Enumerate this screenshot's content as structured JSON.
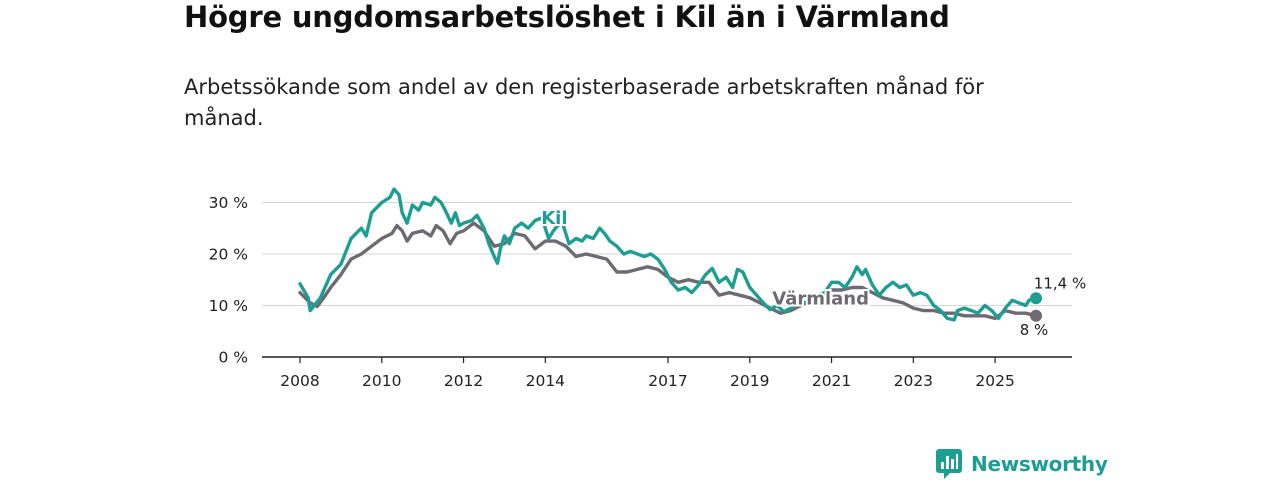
{
  "chart_data": {
    "type": "line",
    "title": "Högre ungdomsarbetslöshet i Kil än i Värmland",
    "subtitle": "Arbetssökande som andel av den registerbaserade arbetskraften månad för månad.",
    "xlabel": "",
    "ylabel": "",
    "ylim": [
      0,
      33
    ],
    "xlim": [
      2008.0,
      2026.0
    ],
    "y_ticks": [
      0,
      10,
      20,
      30
    ],
    "y_tick_labels": [
      "0 %",
      "10 %",
      "20 %",
      "30 %"
    ],
    "x_ticks": [
      2008,
      2010,
      2012,
      2014,
      2017,
      2019,
      2021,
      2023,
      2025
    ],
    "x_tick_labels": [
      "2008",
      "2010",
      "2012",
      "2014",
      "2017",
      "2019",
      "2021",
      "2023",
      "2025"
    ],
    "grid": true,
    "series": [
      {
        "name": "Kil",
        "label": "Kil",
        "color": "#1d9e92",
        "end_label": "11,4 %",
        "points": [
          [
            2008.0,
            14.2
          ],
          [
            2008.2,
            11.5
          ],
          [
            2008.25,
            9.0
          ],
          [
            2008.5,
            11.5
          ],
          [
            2008.75,
            16.0
          ],
          [
            2009.0,
            18.0
          ],
          [
            2009.25,
            23.0
          ],
          [
            2009.5,
            25.0
          ],
          [
            2009.62,
            23.5
          ],
          [
            2009.75,
            28.0
          ],
          [
            2010.0,
            30.0
          ],
          [
            2010.2,
            31.0
          ],
          [
            2010.3,
            32.6
          ],
          [
            2010.42,
            31.5
          ],
          [
            2010.5,
            28.0
          ],
          [
            2010.62,
            26.0
          ],
          [
            2010.75,
            29.5
          ],
          [
            2010.9,
            28.5
          ],
          [
            2011.0,
            30.0
          ],
          [
            2011.2,
            29.5
          ],
          [
            2011.3,
            31.0
          ],
          [
            2011.45,
            30.0
          ],
          [
            2011.55,
            28.5
          ],
          [
            2011.7,
            26.0
          ],
          [
            2011.8,
            28.0
          ],
          [
            2011.9,
            25.5
          ],
          [
            2012.0,
            26.0
          ],
          [
            2012.2,
            26.5
          ],
          [
            2012.33,
            27.5
          ],
          [
            2012.5,
            25.0
          ],
          [
            2012.62,
            22.0
          ],
          [
            2012.75,
            19.5
          ],
          [
            2012.83,
            18.2
          ],
          [
            2012.9,
            21.0
          ],
          [
            2013.0,
            23.5
          ],
          [
            2013.12,
            22.0
          ],
          [
            2013.25,
            25.0
          ],
          [
            2013.42,
            26.0
          ],
          [
            2013.58,
            25.0
          ],
          [
            2013.75,
            26.5
          ],
          [
            2013.92,
            27.0
          ],
          [
            2014.0,
            25.0
          ],
          [
            2014.08,
            23.0
          ],
          [
            2014.2,
            24.5
          ],
          [
            2014.3,
            25.5
          ],
          [
            2014.42,
            26.0
          ],
          [
            2014.58,
            22.0
          ],
          [
            2014.75,
            23.0
          ],
          [
            2014.9,
            22.5
          ],
          [
            2015.0,
            23.5
          ],
          [
            2015.17,
            23.0
          ],
          [
            2015.33,
            25.0
          ],
          [
            2015.45,
            24.0
          ],
          [
            2015.58,
            22.5
          ],
          [
            2015.75,
            21.5
          ],
          [
            2015.92,
            20.0
          ],
          [
            2016.08,
            20.5
          ],
          [
            2016.25,
            20.0
          ],
          [
            2016.42,
            19.5
          ],
          [
            2016.58,
            20.0
          ],
          [
            2016.75,
            19.0
          ],
          [
            2016.92,
            17.0
          ],
          [
            2017.08,
            14.5
          ],
          [
            2017.25,
            13.0
          ],
          [
            2017.42,
            13.5
          ],
          [
            2017.58,
            12.5
          ],
          [
            2017.75,
            14.0
          ],
          [
            2017.92,
            16.0
          ],
          [
            2018.08,
            17.2
          ],
          [
            2018.25,
            14.5
          ],
          [
            2018.42,
            15.5
          ],
          [
            2018.58,
            13.5
          ],
          [
            2018.7,
            17.0
          ],
          [
            2018.83,
            16.5
          ],
          [
            2019.0,
            13.5
          ],
          [
            2019.17,
            12.0
          ],
          [
            2019.33,
            10.5
          ],
          [
            2019.5,
            9.2
          ],
          [
            2019.67,
            10.0
          ],
          [
            2019.83,
            8.8
          ],
          [
            2020.0,
            9.5
          ],
          [
            2020.17,
            10.5
          ],
          [
            2020.33,
            10.5
          ],
          [
            2020.5,
            11.0
          ],
          [
            2020.67,
            12.0
          ],
          [
            2020.83,
            12.5
          ],
          [
            2021.0,
            14.5
          ],
          [
            2021.17,
            14.5
          ],
          [
            2021.33,
            13.5
          ],
          [
            2021.5,
            15.5
          ],
          [
            2021.62,
            17.5
          ],
          [
            2021.75,
            16.0
          ],
          [
            2021.83,
            17.0
          ],
          [
            2022.0,
            14.0
          ],
          [
            2022.17,
            12.0
          ],
          [
            2022.33,
            13.5
          ],
          [
            2022.5,
            14.5
          ],
          [
            2022.67,
            13.5
          ],
          [
            2022.83,
            14.0
          ],
          [
            2023.0,
            12.0
          ],
          [
            2023.17,
            12.5
          ],
          [
            2023.33,
            12.0
          ],
          [
            2023.5,
            10.0
          ],
          [
            2023.67,
            9.0
          ],
          [
            2023.83,
            7.5
          ],
          [
            2024.0,
            7.2
          ],
          [
            2024.08,
            9.0
          ],
          [
            2024.25,
            9.5
          ],
          [
            2024.42,
            9.0
          ],
          [
            2024.58,
            8.5
          ],
          [
            2024.75,
            10.0
          ],
          [
            2024.92,
            9.0
          ],
          [
            2025.08,
            7.5
          ],
          [
            2025.25,
            9.5
          ],
          [
            2025.42,
            11.0
          ],
          [
            2025.58,
            10.5
          ],
          [
            2025.75,
            10.0
          ],
          [
            2025.83,
            11.0
          ],
          [
            2026.0,
            11.4
          ]
        ]
      },
      {
        "name": "Värmland",
        "label": "Värmland",
        "color": "#6e6a72",
        "end_label": "8 %",
        "points": [
          [
            2008.0,
            12.5
          ],
          [
            2008.25,
            10.5
          ],
          [
            2008.42,
            9.8
          ],
          [
            2008.58,
            11.5
          ],
          [
            2008.75,
            13.5
          ],
          [
            2009.0,
            16.0
          ],
          [
            2009.25,
            19.0
          ],
          [
            2009.5,
            20.0
          ],
          [
            2009.75,
            21.5
          ],
          [
            2010.0,
            23.0
          ],
          [
            2010.25,
            24.0
          ],
          [
            2010.37,
            25.5
          ],
          [
            2010.5,
            24.5
          ],
          [
            2010.62,
            22.5
          ],
          [
            2010.75,
            24.0
          ],
          [
            2011.0,
            24.5
          ],
          [
            2011.2,
            23.5
          ],
          [
            2011.33,
            25.5
          ],
          [
            2011.5,
            24.5
          ],
          [
            2011.67,
            22.0
          ],
          [
            2011.83,
            24.0
          ],
          [
            2012.0,
            24.5
          ],
          [
            2012.25,
            26.0
          ],
          [
            2012.5,
            24.5
          ],
          [
            2012.75,
            21.5
          ],
          [
            2013.0,
            22.0
          ],
          [
            2013.25,
            24.0
          ],
          [
            2013.5,
            23.5
          ],
          [
            2013.75,
            21.0
          ],
          [
            2014.0,
            22.5
          ],
          [
            2014.25,
            22.5
          ],
          [
            2014.5,
            21.5
          ],
          [
            2014.75,
            19.5
          ],
          [
            2015.0,
            20.0
          ],
          [
            2015.25,
            19.5
          ],
          [
            2015.5,
            19.0
          ],
          [
            2015.75,
            16.5
          ],
          [
            2016.0,
            16.5
          ],
          [
            2016.25,
            17.0
          ],
          [
            2016.5,
            17.5
          ],
          [
            2016.75,
            17.0
          ],
          [
            2017.0,
            15.5
          ],
          [
            2017.25,
            14.5
          ],
          [
            2017.5,
            15.0
          ],
          [
            2017.75,
            14.5
          ],
          [
            2018.0,
            14.5
          ],
          [
            2018.25,
            12.0
          ],
          [
            2018.5,
            12.5
          ],
          [
            2018.75,
            12.0
          ],
          [
            2019.0,
            11.5
          ],
          [
            2019.25,
            10.5
          ],
          [
            2019.5,
            9.5
          ],
          [
            2019.75,
            8.5
          ],
          [
            2020.0,
            9.0
          ],
          [
            2020.25,
            10.0
          ],
          [
            2020.5,
            11.0
          ],
          [
            2020.75,
            12.0
          ],
          [
            2021.0,
            13.0
          ],
          [
            2021.25,
            13.0
          ],
          [
            2021.5,
            13.5
          ],
          [
            2021.75,
            13.5
          ],
          [
            2022.0,
            12.5
          ],
          [
            2022.25,
            11.5
          ],
          [
            2022.5,
            11.0
          ],
          [
            2022.75,
            10.5
          ],
          [
            2023.0,
            9.5
          ],
          [
            2023.25,
            9.0
          ],
          [
            2023.5,
            9.0
          ],
          [
            2023.75,
            8.5
          ],
          [
            2024.0,
            8.5
          ],
          [
            2024.25,
            8.0
          ],
          [
            2024.5,
            8.0
          ],
          [
            2024.75,
            8.0
          ],
          [
            2025.0,
            7.5
          ],
          [
            2025.25,
            9.0
          ],
          [
            2025.5,
            8.5
          ],
          [
            2025.75,
            8.5
          ],
          [
            2026.0,
            8.0
          ]
        ]
      }
    ]
  },
  "brand": {
    "name": "Newsworthy",
    "icon": "newsworthy-logo-icon",
    "color": "#1d9e92"
  }
}
